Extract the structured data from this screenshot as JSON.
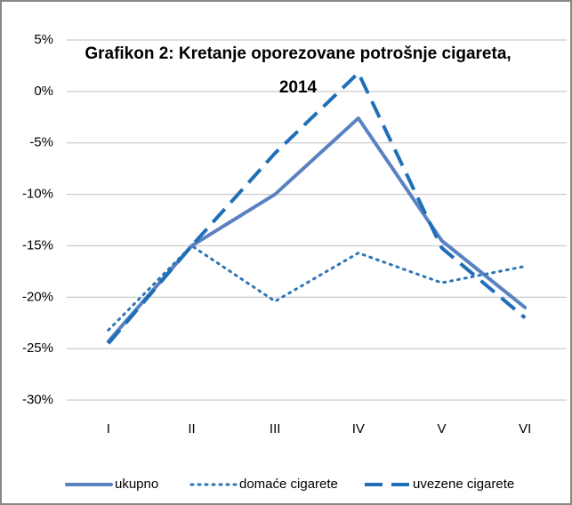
{
  "chart_data": {
    "type": "line",
    "title": "Grafikon 2: Kretanje oporezovane potrošnje cigareta, 2014",
    "categories": [
      "I",
      "II",
      "III",
      "IV",
      "V",
      "VI"
    ],
    "series": [
      {
        "name": "ukupno",
        "color": "#5a82c0",
        "dash": "solid",
        "values": [
          -24.3,
          -15,
          -10,
          -2.6,
          -14.5,
          -21
        ]
      },
      {
        "name": "domaće cigarete",
        "color": "#2e75b6",
        "dash": "dotted",
        "values": [
          -23.2,
          -15,
          -20.4,
          -15.7,
          -18.6,
          -17
        ]
      },
      {
        "name": "uvezene cigarete",
        "color": "#1f6fb8",
        "dash": "dashed",
        "values": [
          -24.5,
          -15,
          -6,
          1.8,
          -15.2,
          -22
        ]
      }
    ],
    "ylim": [
      -30,
      5
    ],
    "yticks": [
      {
        "value": -30,
        "label": "-30%"
      },
      {
        "value": -25,
        "label": "-25%"
      },
      {
        "value": -20,
        "label": "-20%"
      },
      {
        "value": -15,
        "label": "-15%"
      },
      {
        "value": -10,
        "label": "-10%"
      },
      {
        "value": -5,
        "label": "-5%"
      },
      {
        "value": 0,
        "label": "0%"
      },
      {
        "value": 5,
        "label": "5%"
      }
    ],
    "grid": true,
    "legend": "bottom"
  }
}
